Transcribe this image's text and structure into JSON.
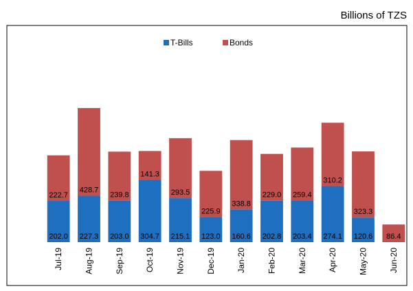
{
  "chart_data": {
    "type": "stacked_bar",
    "subtitle": "Billions of TZS",
    "categories": [
      "Jul-19",
      "Aug-19",
      "Sep-19",
      "Oct-19",
      "Nov-19",
      "Dec-19",
      "Jan-20",
      "Feb-20",
      "Mar-20",
      "Apr-20",
      "May-20",
      "Jun-20"
    ],
    "series": [
      {
        "name": "T-Bills",
        "color": "#1f6fc0",
        "values": [
          202.0,
          227.3,
          203.0,
          304.7,
          215.1,
          123.0,
          160.6,
          202.8,
          203.4,
          274.1,
          120.6,
          null
        ],
        "value_labels": [
          "202.0",
          "227.3",
          "203.0",
          "304.7",
          "215.1",
          "123.0",
          "160.6",
          "202.8",
          "203.4",
          "274.1",
          "120.6",
          null
        ]
      },
      {
        "name": "Bonds",
        "color": "#c0504d",
        "values": [
          222.7,
          428.7,
          239.8,
          141.3,
          293.5,
          225.9,
          338.8,
          229.0,
          259.4,
          310.2,
          323.3,
          86.4
        ],
        "value_labels": [
          "222.7",
          "428.7",
          "239.8",
          "141.3",
          "293.5",
          "225.9",
          "338.8",
          "229.0",
          "259.4",
          "310.2",
          "323.3",
          "86.4"
        ]
      }
    ],
    "ylim": [
      0,
      1060
    ],
    "legend": "top"
  }
}
